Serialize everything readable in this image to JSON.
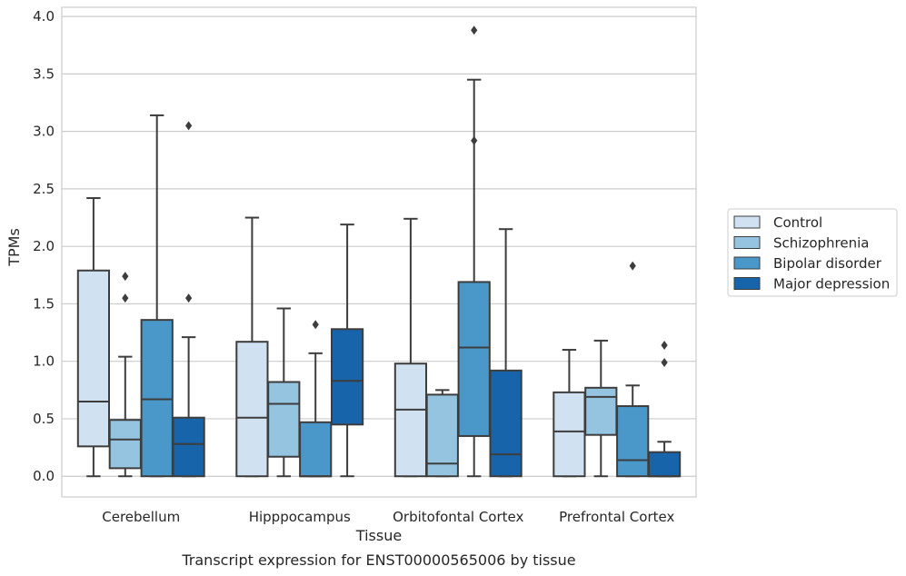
{
  "caption": "Transcript expression for ENST00000565006 by tissue",
  "chart_data": {
    "type": "box",
    "xlabel": "Tissue",
    "ylabel": "TPMs",
    "ylim": [
      -0.18,
      4.08
    ],
    "yticks": [
      "0.0",
      "0.5",
      "1.0",
      "1.5",
      "2.0",
      "2.5",
      "3.0",
      "3.5",
      "4.0"
    ],
    "ytick_values": [
      0,
      0.5,
      1.0,
      1.5,
      2.0,
      2.5,
      3.0,
      3.5,
      4.0
    ],
    "grid": true,
    "legend_position": "right",
    "categories": [
      "Cerebellum",
      "Hipppocampus",
      "Orbitofontal Cortex",
      "Prefrontal Cortex"
    ],
    "series": [
      {
        "name": "Control",
        "color": "#d0e1f2",
        "boxes": [
          {
            "whislo": 0.0,
            "q1": 0.26,
            "med": 0.65,
            "q3": 1.79,
            "whishi": 2.42,
            "fliers": []
          },
          {
            "whislo": 0.0,
            "q1": 0.0,
            "med": 0.51,
            "q3": 1.17,
            "whishi": 2.25,
            "fliers": []
          },
          {
            "whislo": 0.0,
            "q1": 0.0,
            "med": 0.58,
            "q3": 0.98,
            "whishi": 2.24,
            "fliers": []
          },
          {
            "whislo": 0.0,
            "q1": 0.0,
            "med": 0.39,
            "q3": 0.73,
            "whishi": 1.1,
            "fliers": []
          }
        ]
      },
      {
        "name": "Schizophrenia",
        "color": "#94c4df",
        "boxes": [
          {
            "whislo": 0.0,
            "q1": 0.07,
            "med": 0.32,
            "q3": 0.49,
            "whishi": 1.04,
            "fliers": [
              1.55,
              1.74
            ]
          },
          {
            "whislo": 0.0,
            "q1": 0.17,
            "med": 0.63,
            "q3": 0.82,
            "whishi": 1.46,
            "fliers": []
          },
          {
            "whislo": 0.0,
            "q1": 0.0,
            "med": 0.11,
            "q3": 0.71,
            "whishi": 0.75,
            "fliers": []
          },
          {
            "whislo": 0.0,
            "q1": 0.36,
            "med": 0.69,
            "q3": 0.77,
            "whishi": 1.18,
            "fliers": []
          }
        ]
      },
      {
        "name": "Bipolar disorder",
        "color": "#4a98c9",
        "boxes": [
          {
            "whislo": 0.0,
            "q1": 0.0,
            "med": 0.67,
            "q3": 1.36,
            "whishi": 3.14,
            "fliers": []
          },
          {
            "whislo": 0.0,
            "q1": 0.0,
            "med": 0.0,
            "q3": 0.47,
            "whishi": 1.07,
            "fliers": [
              1.32
            ]
          },
          {
            "whislo": 0.0,
            "q1": 0.35,
            "med": 1.12,
            "q3": 1.69,
            "whishi": 3.45,
            "fliers": [
              2.92,
              3.88
            ]
          },
          {
            "whislo": 0.0,
            "q1": 0.0,
            "med": 0.14,
            "q3": 0.61,
            "whishi": 0.79,
            "fliers": [
              1.83
            ]
          }
        ]
      },
      {
        "name": "Major depression",
        "color": "#1764ab",
        "boxes": [
          {
            "whislo": 0.0,
            "q1": 0.0,
            "med": 0.28,
            "q3": 0.51,
            "whishi": 1.21,
            "fliers": [
              1.55,
              3.05
            ]
          },
          {
            "whislo": 0.0,
            "q1": 0.45,
            "med": 0.83,
            "q3": 1.28,
            "whishi": 2.19,
            "fliers": []
          },
          {
            "whislo": 0.0,
            "q1": 0.0,
            "med": 0.19,
            "q3": 0.92,
            "whishi": 2.15,
            "fliers": []
          },
          {
            "whislo": 0.0,
            "q1": 0.0,
            "med": 0.0,
            "q3": 0.21,
            "whishi": 0.3,
            "fliers": [
              0.99,
              1.14
            ]
          }
        ]
      }
    ]
  }
}
